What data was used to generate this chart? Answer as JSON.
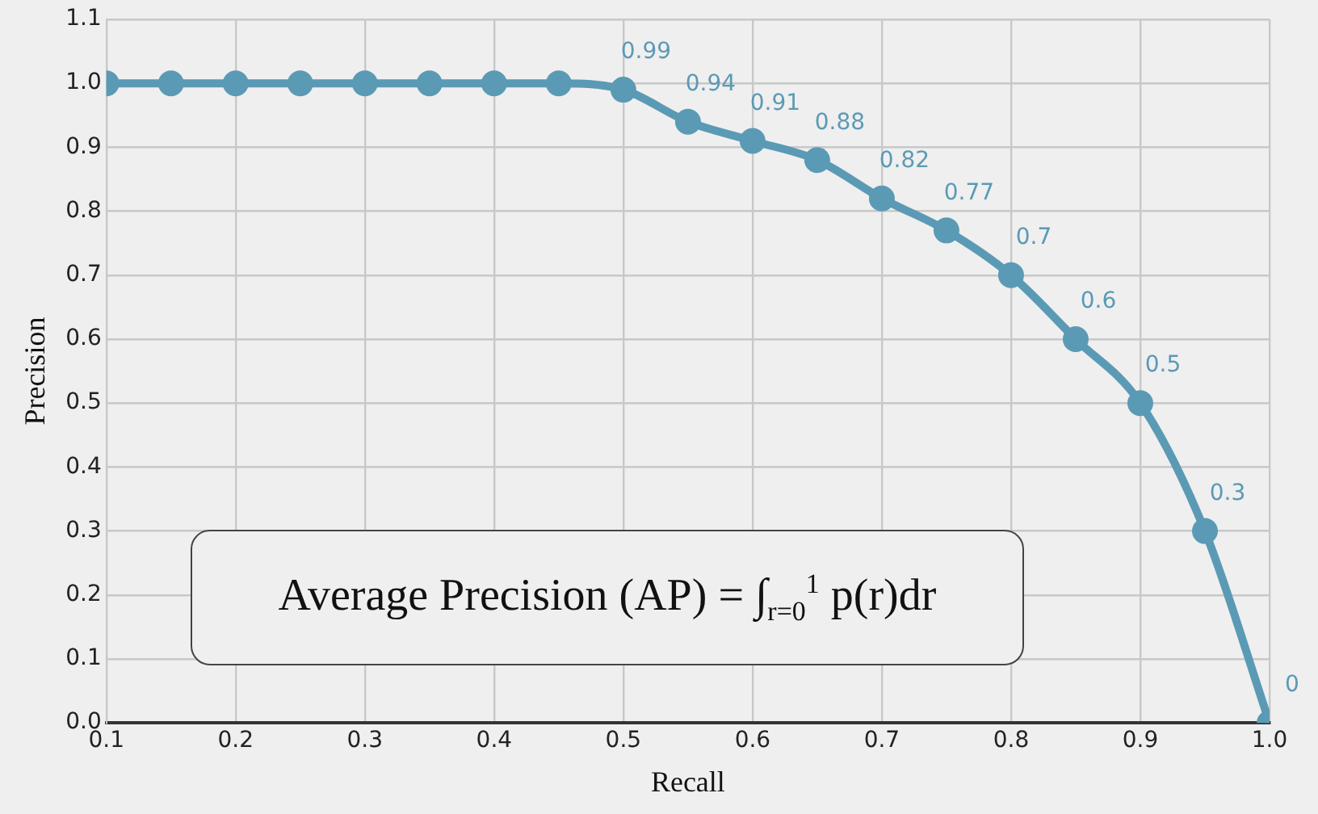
{
  "chart_data": {
    "type": "line",
    "xlabel": "Recall",
    "ylabel": "Precision",
    "x": [
      0.1,
      0.15,
      0.2,
      0.25,
      0.3,
      0.35,
      0.4,
      0.45,
      0.5,
      0.55,
      0.6,
      0.65,
      0.7,
      0.75,
      0.8,
      0.85,
      0.9,
      0.95,
      1.0
    ],
    "series": [
      {
        "color": "#5b9ab5",
        "values": [
          1,
          1,
          1,
          1,
          1,
          1,
          1,
          1,
          0.99,
          0.94,
          0.91,
          0.88,
          0.82,
          0.77,
          0.7,
          0.6,
          0.5,
          0.3,
          0
        ],
        "value_labels": [
          null,
          null,
          null,
          null,
          null,
          null,
          null,
          null,
          "0.99",
          "0.94",
          "0.91",
          "0.88",
          "0.82",
          "0.77",
          "0.7",
          "0.6",
          "0.5",
          "0.3",
          "0"
        ]
      }
    ],
    "xlim": [
      0.1,
      1.0
    ],
    "xticks": [
      {
        "value": 0.1,
        "label": "0.1"
      },
      {
        "value": 0.2,
        "label": "0.2"
      },
      {
        "value": 0.3,
        "label": "0.3"
      },
      {
        "value": 0.4,
        "label": "0.4"
      },
      {
        "value": 0.5,
        "label": "0.5"
      },
      {
        "value": 0.6,
        "label": "0.6"
      },
      {
        "value": 0.7,
        "label": "0.7"
      },
      {
        "value": 0.8,
        "label": "0.8"
      },
      {
        "value": 0.9,
        "label": "0.9"
      },
      {
        "value": 1.0,
        "label": "1.0"
      }
    ],
    "ylim": [
      0,
      1.1
    ],
    "yticks": [
      {
        "value": 0,
        "label": "0.0"
      },
      {
        "value": 0.1,
        "label": "0.1"
      },
      {
        "value": 0.2,
        "label": "0.2"
      },
      {
        "value": 0.3,
        "label": "0.3"
      },
      {
        "value": 0.4,
        "label": "0.4"
      },
      {
        "value": 0.5,
        "label": "0.5"
      },
      {
        "value": 0.6,
        "label": "0.6"
      },
      {
        "value": 0.7,
        "label": "0.7"
      },
      {
        "value": 0.8,
        "label": "0.8"
      },
      {
        "value": 0.9,
        "label": "0.9"
      },
      {
        "value": 1.0,
        "label": "1.0"
      },
      {
        "value": 1.1,
        "label": "1.1"
      }
    ],
    "grid": true,
    "marker": "circle",
    "line_style": "solid",
    "annotations": [
      "Average Precision (AP) = ∫$_{r=0}$$^{1}$ p(r)dr"
    ]
  }
}
